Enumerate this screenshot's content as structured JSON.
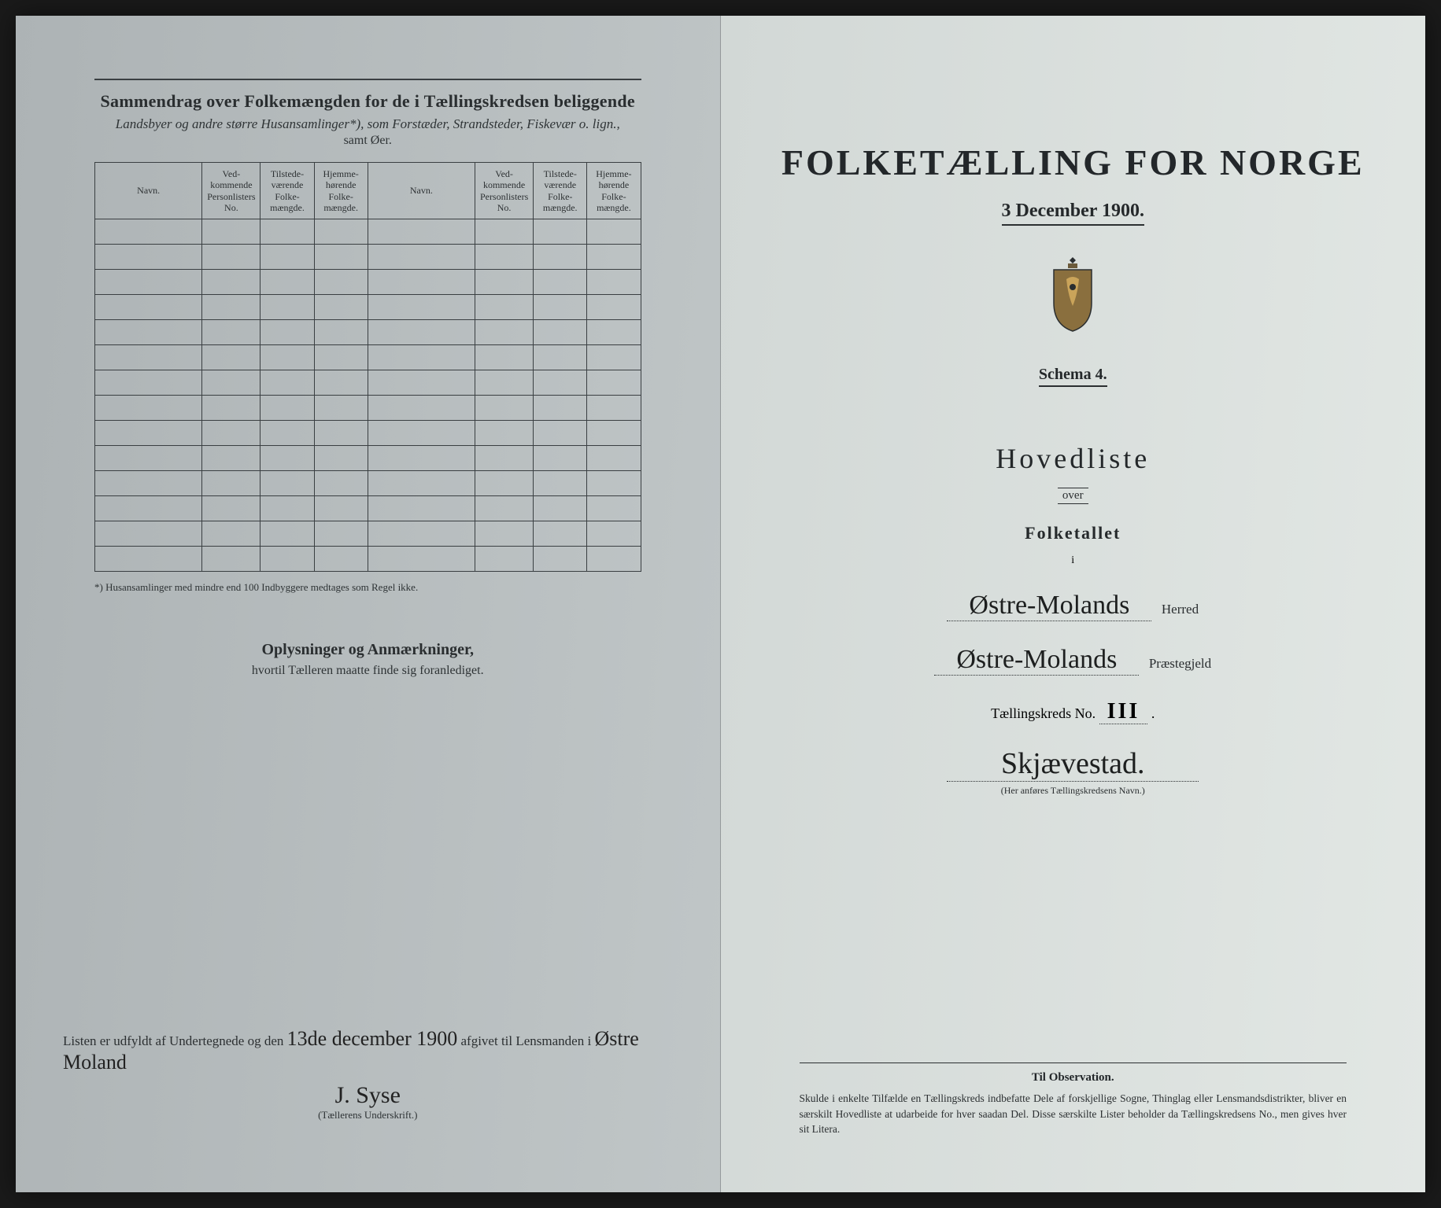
{
  "left": {
    "summary_title": "Sammendrag over Folkemængden for de i Tællingskredsen beliggende",
    "summary_sub": "Landsbyer og andre større Husansamlinger*), som Forstæder, Strandsteder, Fiskevær o. lign.,",
    "summary_sub2": "samt Øer.",
    "columns": {
      "navn": "Navn.",
      "vedk": "Ved-\nkommende\nPersonlisters\nNo.",
      "tilst": "Tilstede-\nværende\nFolke-\nmængde.",
      "hjem": "Hjemme-\nhørende\nFolke-\nmængde."
    },
    "empty_rows": 14,
    "footnote": "*) Husansamlinger med mindre end 100 Indbyggere medtages som Regel ikke.",
    "oplys_title": "Oplysninger og Anmærkninger,",
    "oplys_sub": "hvortil Tælleren maatte finde sig foranlediget.",
    "sig_prefix": "Listen er udfyldt af Undertegnede og den ",
    "sig_date": "13de december 1900",
    "sig_mid": " afgivet til Lensmanden i ",
    "sig_place": "Østre Moland",
    "sig_name": "J. Syse",
    "sig_caption": "(Tællerens Underskrift.)"
  },
  "right": {
    "main_title": "FOLKETÆLLING FOR NORGE",
    "date": "3 December 1900.",
    "schema": "Schema 4.",
    "hovedliste": "Hovedliste",
    "over": "over",
    "folketallet": "Folketallet",
    "i": "i",
    "herred_hw": "Østre-Molands",
    "herred_lbl": "Herred",
    "praeste_hw": "Østre-Molands",
    "praeste_lbl": "Præstegjeld",
    "tkreds_lbl": "Tællingskreds No.",
    "tkreds_no": "III",
    "kreds_navn": "Skjævestad.",
    "kreds_caption": "(Her anføres Tællingskredsens Navn.)",
    "obs_title": "Til Observation.",
    "obs_text": "Skulde i enkelte Tilfælde en Tællingskreds indbefatte Dele af forskjellige Sogne, Thinglag eller Lensmandsdistrikter, bliver en særskilt Hovedliste at udarbeide for hver saadan Del. Disse særskilte Lister beholder da Tællingskredsens No., men gives hver sit Litera."
  },
  "colors": {
    "ink": "#2a2e30",
    "rule": "#3a3f42",
    "paper_left": "#b8bec0",
    "paper_right": "#e2e7e4",
    "handwriting": "#1d1f1f"
  }
}
